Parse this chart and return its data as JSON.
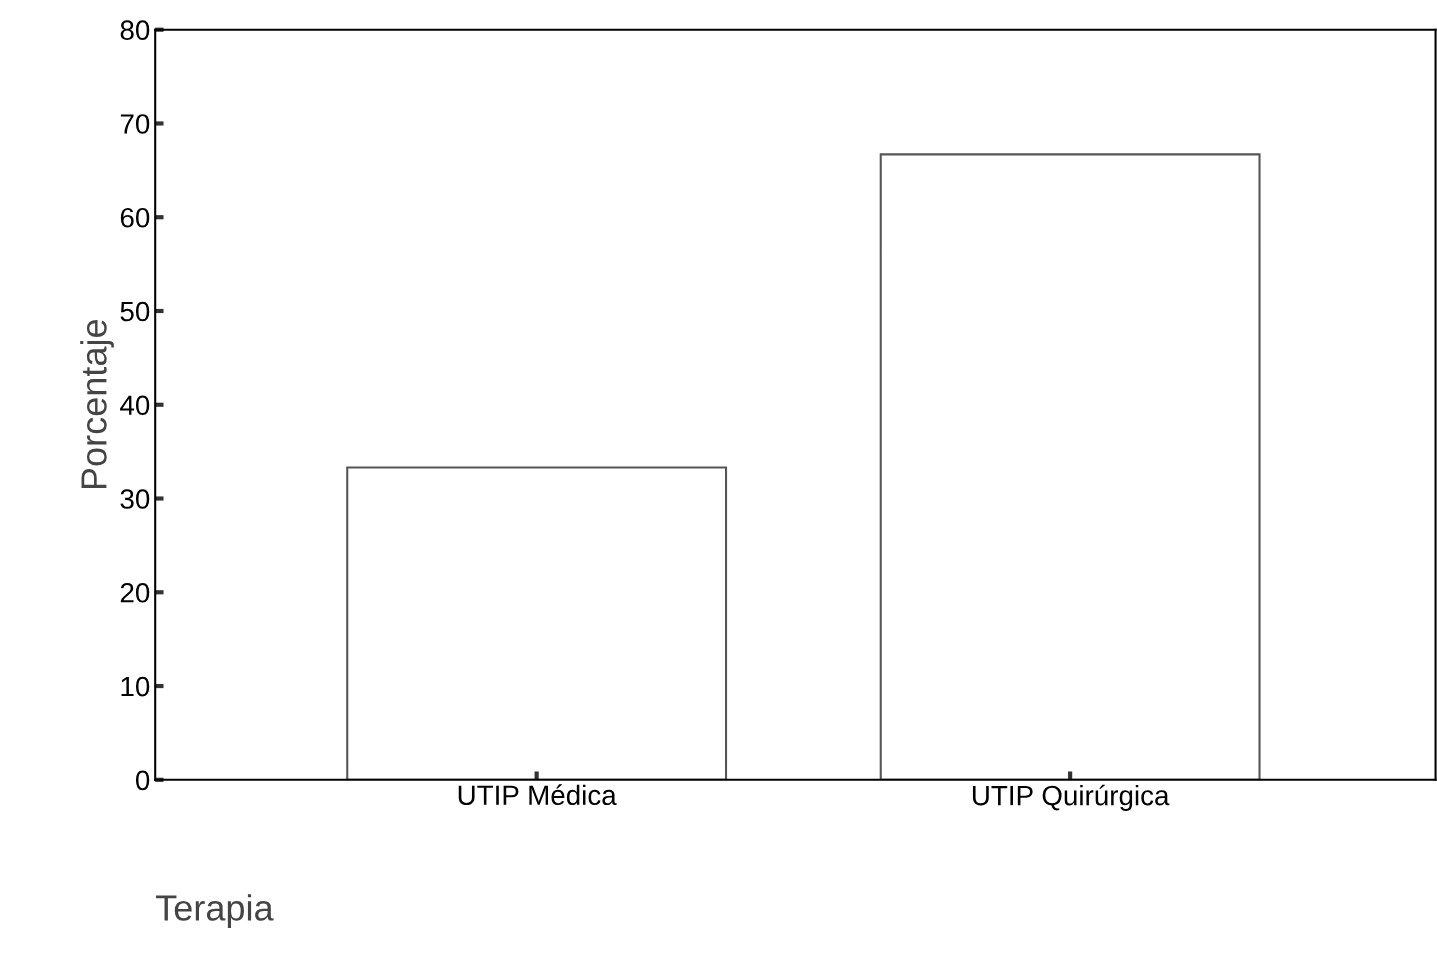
{
  "chart_data": {
    "type": "bar",
    "categories": [
      "UTIP Médica",
      "UTIP Quirúrgica"
    ],
    "values": [
      33.3,
      66.7
    ],
    "color": "#ffffff",
    "xlabel": "Terapia",
    "ylabel": "Porcentaje",
    "ylim": [
      0,
      80
    ],
    "yticks": [
      0,
      10,
      20,
      30,
      40,
      50,
      60,
      70,
      80
    ],
    "grid": false,
    "legend": false
  }
}
